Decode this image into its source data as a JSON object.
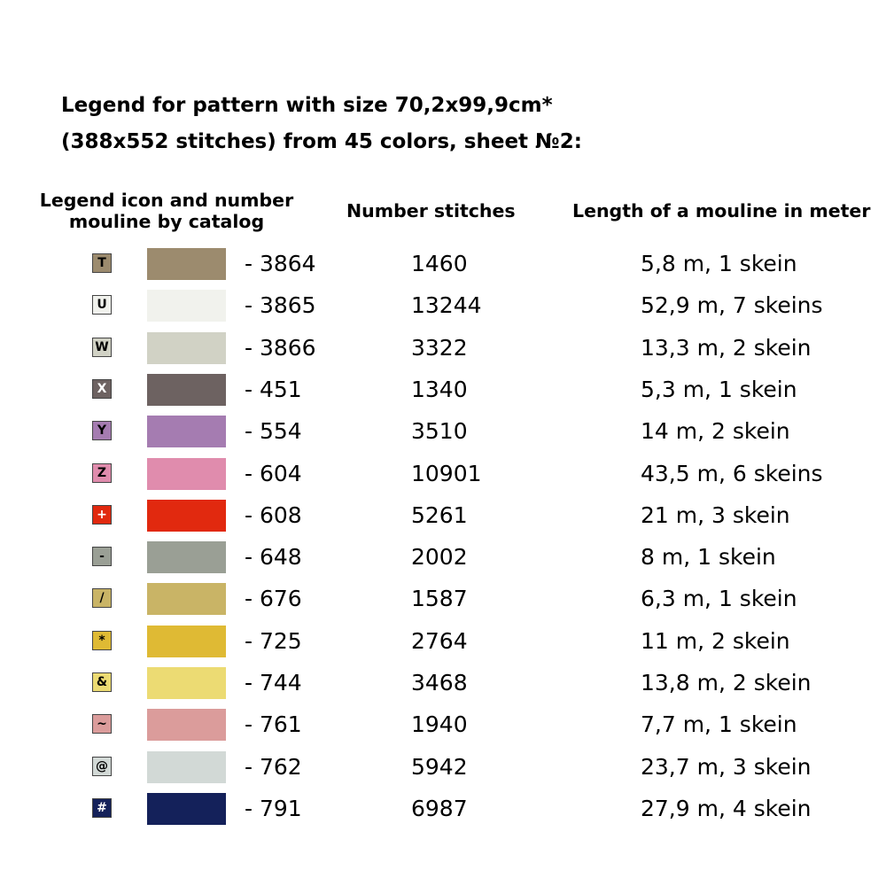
{
  "title": {
    "line1": "Legend for pattern with size 70,2x99,9cm*",
    "line2": "(388x552 stitches) from 45 colors, sheet №2:"
  },
  "headers": {
    "legend_line1": "Legend icon and number",
    "legend_line2": "mouline by catalog",
    "stitches": "Number stitches",
    "length": "Length of a mouline in meter"
  },
  "rows": [
    {
      "symbol": "T",
      "icon_bg": "#9c8b6e",
      "icon_fg": "#000000",
      "swatch": "#9c8b6e",
      "code": "- 3864",
      "stitches": "1460",
      "length": "5,8 m, 1 skein"
    },
    {
      "symbol": "U",
      "icon_bg": "#f1f2ed",
      "icon_fg": "#000000",
      "swatch": "#f1f2ed",
      "code": "- 3865",
      "stitches": "13244",
      "length": "52,9 m, 7 skeins"
    },
    {
      "symbol": "W",
      "icon_bg": "#d1d2c5",
      "icon_fg": "#000000",
      "swatch": "#d1d2c5",
      "code": "- 3866",
      "stitches": "3322",
      "length": "13,3 m, 2 skein"
    },
    {
      "symbol": "X",
      "icon_bg": "#6d6261",
      "icon_fg": "#ffffff",
      "swatch": "#6d6261",
      "code": "- 451",
      "stitches": "1340",
      "length": "5,3 m, 1 skein"
    },
    {
      "symbol": "Y",
      "icon_bg": "#a57cb1",
      "icon_fg": "#000000",
      "swatch": "#a57cb1",
      "code": "- 554",
      "stitches": "3510",
      "length": "14 m, 2 skein"
    },
    {
      "symbol": "Z",
      "icon_bg": "#e08cad",
      "icon_fg": "#000000",
      "swatch": "#e08cad",
      "code": "- 604",
      "stitches": "10901",
      "length": "43,5 m, 6 skeins"
    },
    {
      "symbol": "+",
      "icon_bg": "#e1290f",
      "icon_fg": "#ffffff",
      "swatch": "#e1290f",
      "code": "- 608",
      "stitches": "5261",
      "length": "21 m, 3 skein"
    },
    {
      "symbol": "-",
      "icon_bg": "#9a9f95",
      "icon_fg": "#000000",
      "swatch": "#9a9f95",
      "code": "- 648",
      "stitches": "2002",
      "length": "8 m, 1 skein"
    },
    {
      "symbol": "/",
      "icon_bg": "#c9b466",
      "icon_fg": "#000000",
      "swatch": "#c9b466",
      "code": "- 676",
      "stitches": "1587",
      "length": "6,3 m, 1 skein"
    },
    {
      "symbol": "*",
      "icon_bg": "#dfba34",
      "icon_fg": "#000000",
      "swatch": "#dfba34",
      "code": "- 725",
      "stitches": "2764",
      "length": "11 m, 2 skein"
    },
    {
      "symbol": "&",
      "icon_bg": "#ecdb73",
      "icon_fg": "#000000",
      "swatch": "#ecdb73",
      "code": "- 744",
      "stitches": "3468",
      "length": "13,8 m, 2 skein"
    },
    {
      "symbol": "~",
      "icon_bg": "#db9c9b",
      "icon_fg": "#000000",
      "swatch": "#db9c9b",
      "code": "- 761",
      "stitches": "1940",
      "length": "7,7 m, 1 skein"
    },
    {
      "symbol": "@",
      "icon_bg": "#d2d9d6",
      "icon_fg": "#000000",
      "swatch": "#d2d9d6",
      "code": "- 762",
      "stitches": "5942",
      "length": "23,7 m, 3 skein"
    },
    {
      "symbol": "#",
      "icon_bg": "#14215a",
      "icon_fg": "#ffffff",
      "swatch": "#14215a",
      "code": "- 791",
      "stitches": "6987",
      "length": "27,9 m, 4 skein"
    }
  ]
}
